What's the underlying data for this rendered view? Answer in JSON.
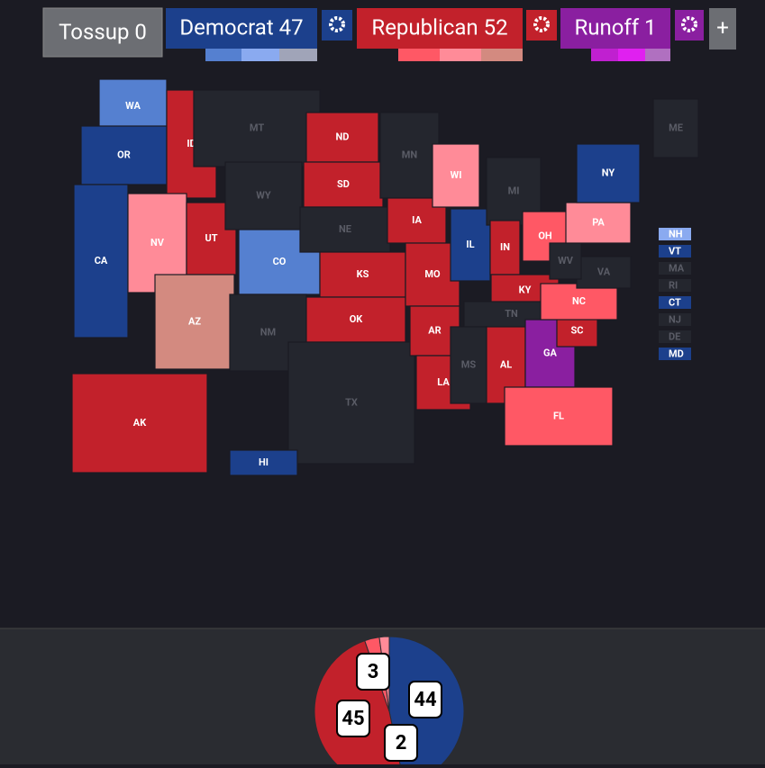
{
  "toolbar": {
    "buttons": [
      {
        "label": "Tossup 0",
        "color": "#6c6e73"
      },
      {
        "label": "Democrat 47",
        "color": "#1c408c"
      },
      {
        "label": "Republican 52",
        "color": "#c2212b"
      },
      {
        "label": "Runoff 1",
        "color": "#8a1fa0"
      },
      {
        "label": "+",
        "color": "#6c6e73"
      }
    ]
  },
  "map": {
    "states": [
      {
        "label": "WA",
        "color": "#5580d0"
      },
      {
        "label": "OR",
        "color": "#1c408c"
      },
      {
        "label": "CA",
        "color": "#1c408c"
      },
      {
        "label": "ID",
        "color": "#c2212b"
      },
      {
        "label": "NV",
        "color": "#ff8b98"
      },
      {
        "label": "UT",
        "color": "#c2212b"
      },
      {
        "label": "AZ",
        "color": "#d38a80"
      },
      {
        "label": "MT",
        "color": "#24262e"
      },
      {
        "label": "WY",
        "color": "#24262e"
      },
      {
        "label": "CO",
        "color": "#5580d0"
      },
      {
        "label": "NM",
        "color": "#24262e"
      },
      {
        "label": "ND",
        "color": "#c2212b"
      },
      {
        "label": "SD",
        "color": "#c2212b"
      },
      {
        "label": "NE",
        "color": "#24262e"
      },
      {
        "label": "KS",
        "color": "#c2212b"
      },
      {
        "label": "OK",
        "color": "#c2212b"
      },
      {
        "label": "TX",
        "color": "#24262e"
      },
      {
        "label": "MN",
        "color": "#24262e"
      },
      {
        "label": "IA",
        "color": "#c2212b"
      },
      {
        "label": "MO",
        "color": "#c2212b"
      },
      {
        "label": "AR",
        "color": "#c2212b"
      },
      {
        "label": "LA",
        "color": "#c2212b"
      },
      {
        "label": "WI",
        "color": "#ff8b98"
      },
      {
        "label": "IL",
        "color": "#1c408c"
      },
      {
        "label": "MI",
        "color": "#24262e"
      },
      {
        "label": "IN",
        "color": "#c2212b"
      },
      {
        "label": "OH",
        "color": "#ff5865"
      },
      {
        "label": "KY",
        "color": "#c2212b"
      },
      {
        "label": "TN",
        "color": "#24262e"
      },
      {
        "label": "MS",
        "color": "#24262e"
      },
      {
        "label": "AL",
        "color": "#c2212b"
      },
      {
        "label": "GA",
        "color": "#8a1fa0"
      },
      {
        "label": "FL",
        "color": "#ff5865"
      },
      {
        "label": "SC",
        "color": "#c2212b"
      },
      {
        "label": "NC",
        "color": "#ff5865"
      },
      {
        "label": "VA",
        "color": "#24262e"
      },
      {
        "label": "WV",
        "color": "#24262e"
      },
      {
        "label": "PA",
        "color": "#ff8b98"
      },
      {
        "label": "NY",
        "color": "#1c408c"
      },
      {
        "label": "ME",
        "color": "#24262e"
      },
      {
        "label": "AK",
        "color": "#c2212b"
      },
      {
        "label": "HI",
        "color": "#1c408c"
      }
    ],
    "small_states": [
      {
        "label": "NH",
        "color": "#8aaaf0"
      },
      {
        "label": "VT",
        "color": "#1c408c"
      },
      {
        "label": "MA",
        "color": "#24262e"
      },
      {
        "label": "RI",
        "color": "#24262e"
      },
      {
        "label": "CT",
        "color": "#1c408c"
      },
      {
        "label": "NJ",
        "color": "#24262e"
      },
      {
        "label": "DE",
        "color": "#24262e"
      },
      {
        "label": "MD",
        "color": "#1c408c"
      }
    ]
  },
  "summary": {
    "segments": [
      {
        "value": 44,
        "color": "#1c408c"
      },
      {
        "value": 45,
        "color": "#c2212b"
      },
      {
        "value": 3,
        "color": "#ff5865"
      },
      {
        "value": 2,
        "color": "#ff8b98"
      }
    ]
  }
}
